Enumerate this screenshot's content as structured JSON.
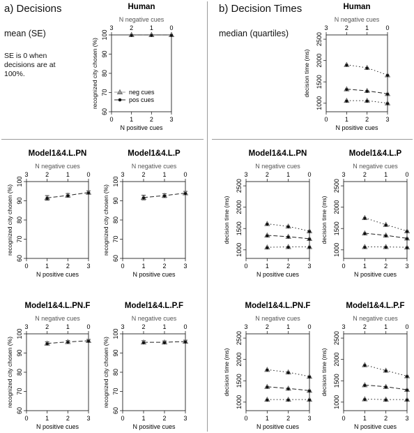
{
  "sections": {
    "a_title": "a) Decisions",
    "b_title": "b) Decision Times",
    "a_stat": "mean (SE)",
    "b_stat": "median (quartiles)",
    "a_footnote": "SE is 0 when decisions are at 100%."
  },
  "colors": {
    "neg_marker": "#9a9a9a",
    "pos_marker": "#111111",
    "axis": "#222222",
    "divider": "#9a9a9a"
  },
  "chart_data": [
    {
      "id": "dec-human",
      "panel": "decisions",
      "type": "line",
      "title": "Human",
      "xlabel": "N positive cues",
      "x2label": "N negative cues",
      "ylabel": "recognized city chosen (%)",
      "x": [
        1,
        2,
        3
      ],
      "xlim": [
        0,
        3
      ],
      "xticks": [
        0,
        1,
        2,
        3
      ],
      "x2ticks": [
        "3",
        "2",
        "1",
        "0"
      ],
      "ylim": [
        60,
        100
      ],
      "yticks": [
        60,
        70,
        80,
        90,
        100
      ],
      "legend": {
        "placement": "bottom-left",
        "entries": [
          "neg cues",
          "pos cues"
        ]
      },
      "series": [
        {
          "values": [
            100,
            100,
            100
          ],
          "err": [
            0,
            0,
            0
          ]
        }
      ]
    },
    {
      "id": "dec-pn",
      "panel": "decisions",
      "type": "line",
      "title": "Model1&4.L.PN",
      "xlabel": "N positive cues",
      "x2label": "N negative cues",
      "ylabel": "recognized city chosen (%)",
      "x": [
        1,
        2,
        3
      ],
      "xlim": [
        0,
        3
      ],
      "xticks": [
        0,
        1,
        2,
        3
      ],
      "x2ticks": [
        "3",
        "2",
        "1",
        "0"
      ],
      "ylim": [
        60,
        100
      ],
      "yticks": [
        60,
        70,
        80,
        90,
        100
      ],
      "series": [
        {
          "values": [
            91.5,
            92.8,
            94.3
          ],
          "err": [
            1.2,
            1.0,
            0.9
          ]
        }
      ]
    },
    {
      "id": "dec-p",
      "panel": "decisions",
      "type": "line",
      "title": "Model1&4.L.P",
      "xlabel": "N positive cues",
      "x2label": "N negative cues",
      "ylabel": "recognized city chosen (%)",
      "x": [
        1,
        2,
        3
      ],
      "xlim": [
        0,
        3
      ],
      "xticks": [
        0,
        1,
        2,
        3
      ],
      "x2ticks": [
        "3",
        "2",
        "1",
        "0"
      ],
      "ylim": [
        60,
        100
      ],
      "yticks": [
        60,
        70,
        80,
        90,
        100
      ],
      "series": [
        {
          "values": [
            91.7,
            92.7,
            94.0
          ],
          "err": [
            1.2,
            1.0,
            0.9
          ]
        }
      ]
    },
    {
      "id": "dec-pnf",
      "panel": "decisions",
      "type": "line",
      "title": "Model1&4.L.PN.F",
      "xlabel": "N positive cues",
      "x2label": "N negative cues",
      "ylabel": "recognized city chosen (%)",
      "x": [
        1,
        2,
        3
      ],
      "xlim": [
        0,
        3
      ],
      "xticks": [
        0,
        1,
        2,
        3
      ],
      "x2ticks": [
        "3",
        "2",
        "1",
        "0"
      ],
      "ylim": [
        60,
        100
      ],
      "yticks": [
        60,
        70,
        80,
        90,
        100
      ],
      "series": [
        {
          "values": [
            95.0,
            95.8,
            96.4
          ],
          "err": [
            0.8,
            0.7,
            0.7
          ]
        }
      ]
    },
    {
      "id": "dec-pf",
      "panel": "decisions",
      "type": "line",
      "title": "Model1&4.L.P.F",
      "xlabel": "N positive cues",
      "x2label": "N negative cues",
      "ylabel": "recognized city chosen (%)",
      "x": [
        1,
        2,
        3
      ],
      "xlim": [
        0,
        3
      ],
      "xticks": [
        0,
        1,
        2,
        3
      ],
      "x2ticks": [
        "3",
        "2",
        "1",
        "0"
      ],
      "ylim": [
        60,
        100
      ],
      "yticks": [
        60,
        70,
        80,
        90,
        100
      ],
      "series": [
        {
          "values": [
            95.6,
            95.6,
            96.0
          ],
          "err": [
            0.8,
            0.7,
            0.7
          ]
        }
      ]
    },
    {
      "id": "time-human",
      "panel": "times",
      "type": "line",
      "title": "Human",
      "xlabel": "N positive cues",
      "x2label": "N negative cues",
      "ylabel": "decision time (ms)",
      "x": [
        1,
        2,
        3
      ],
      "xlim": [
        0,
        3
      ],
      "xticks": [
        0,
        1,
        2,
        3
      ],
      "x2ticks": [
        "3",
        "2",
        "1",
        "0"
      ],
      "ylim": [
        800,
        2600
      ],
      "yticks": [
        1000,
        1500,
        2000,
        2500
      ],
      "series": [
        {
          "values": [
            1900,
            1830,
            1660
          ],
          "style": "dotted"
        },
        {
          "values": [
            1330,
            1290,
            1220
          ],
          "style": "dashed"
        },
        {
          "values": [
            1060,
            1060,
            1000
          ],
          "style": "dotted"
        }
      ]
    },
    {
      "id": "time-pn",
      "panel": "times",
      "type": "line",
      "title": "Model1&4.L.PN",
      "xlabel": "N positive cues",
      "x2label": "N negative cues",
      "ylabel": "decision time (ms)",
      "x": [
        1,
        2,
        3
      ],
      "xlim": [
        0,
        3
      ],
      "xticks": [
        0,
        1,
        2,
        3
      ],
      "x2ticks": [
        "3",
        "2",
        "1",
        "0"
      ],
      "ylim": [
        800,
        2600
      ],
      "yticks": [
        1000,
        1500,
        2000,
        2500
      ],
      "series": [
        {
          "values": [
            1610,
            1550,
            1440
          ],
          "style": "dotted"
        },
        {
          "values": [
            1340,
            1310,
            1260
          ],
          "style": "dashed"
        },
        {
          "values": [
            1060,
            1070,
            1070
          ],
          "style": "dotted"
        }
      ]
    },
    {
      "id": "time-p",
      "panel": "times",
      "type": "line",
      "title": "Model1&4.L.P",
      "xlabel": "N positive cues",
      "x2label": "N negative cues",
      "ylabel": "decision time (ms)",
      "x": [
        1,
        2,
        3
      ],
      "xlim": [
        0,
        3
      ],
      "xticks": [
        0,
        1,
        2,
        3
      ],
      "x2ticks": [
        "3",
        "2",
        "1",
        "0"
      ],
      "ylim": [
        800,
        2600
      ],
      "yticks": [
        1000,
        1500,
        2000,
        2500
      ],
      "series": [
        {
          "values": [
            1750,
            1590,
            1440
          ],
          "style": "dotted"
        },
        {
          "values": [
            1390,
            1340,
            1270
          ],
          "style": "dashed"
        },
        {
          "values": [
            1070,
            1070,
            1060
          ],
          "style": "dotted"
        }
      ]
    },
    {
      "id": "time-pnf",
      "panel": "times",
      "type": "line",
      "title": "Model1&4.L.PN.F",
      "xlabel": "N positive cues",
      "x2label": "N negative cues",
      "ylabel": "decision time (ms)",
      "x": [
        1,
        2,
        3
      ],
      "xlim": [
        0,
        3
      ],
      "xticks": [
        0,
        1,
        2,
        3
      ],
      "x2ticks": [
        "3",
        "2",
        "1",
        "0"
      ],
      "ylim": [
        800,
        2600
      ],
      "yticks": [
        1000,
        1500,
        2000,
        2500
      ],
      "series": [
        {
          "values": [
            1760,
            1700,
            1600
          ],
          "style": "dotted"
        },
        {
          "values": [
            1360,
            1320,
            1270
          ],
          "style": "dashed"
        },
        {
          "values": [
            1060,
            1060,
            1060
          ],
          "style": "dotted"
        }
      ]
    },
    {
      "id": "time-pf",
      "panel": "times",
      "type": "line",
      "title": "Model1&4.L.P.F",
      "xlabel": "N positive cues",
      "x2label": "N negative cues",
      "ylabel": "decision time (ms)",
      "x": [
        1,
        2,
        3
      ],
      "xlim": [
        0,
        3
      ],
      "xticks": [
        0,
        1,
        2,
        3
      ],
      "x2ticks": [
        "3",
        "2",
        "1",
        "0"
      ],
      "ylim": [
        800,
        2600
      ],
      "yticks": [
        1000,
        1500,
        2000,
        2500
      ],
      "series": [
        {
          "values": [
            1870,
            1740,
            1610
          ],
          "style": "dotted"
        },
        {
          "values": [
            1400,
            1360,
            1290
          ],
          "style": "dashed"
        },
        {
          "values": [
            1070,
            1060,
            1060
          ],
          "style": "dotted"
        }
      ]
    }
  ]
}
